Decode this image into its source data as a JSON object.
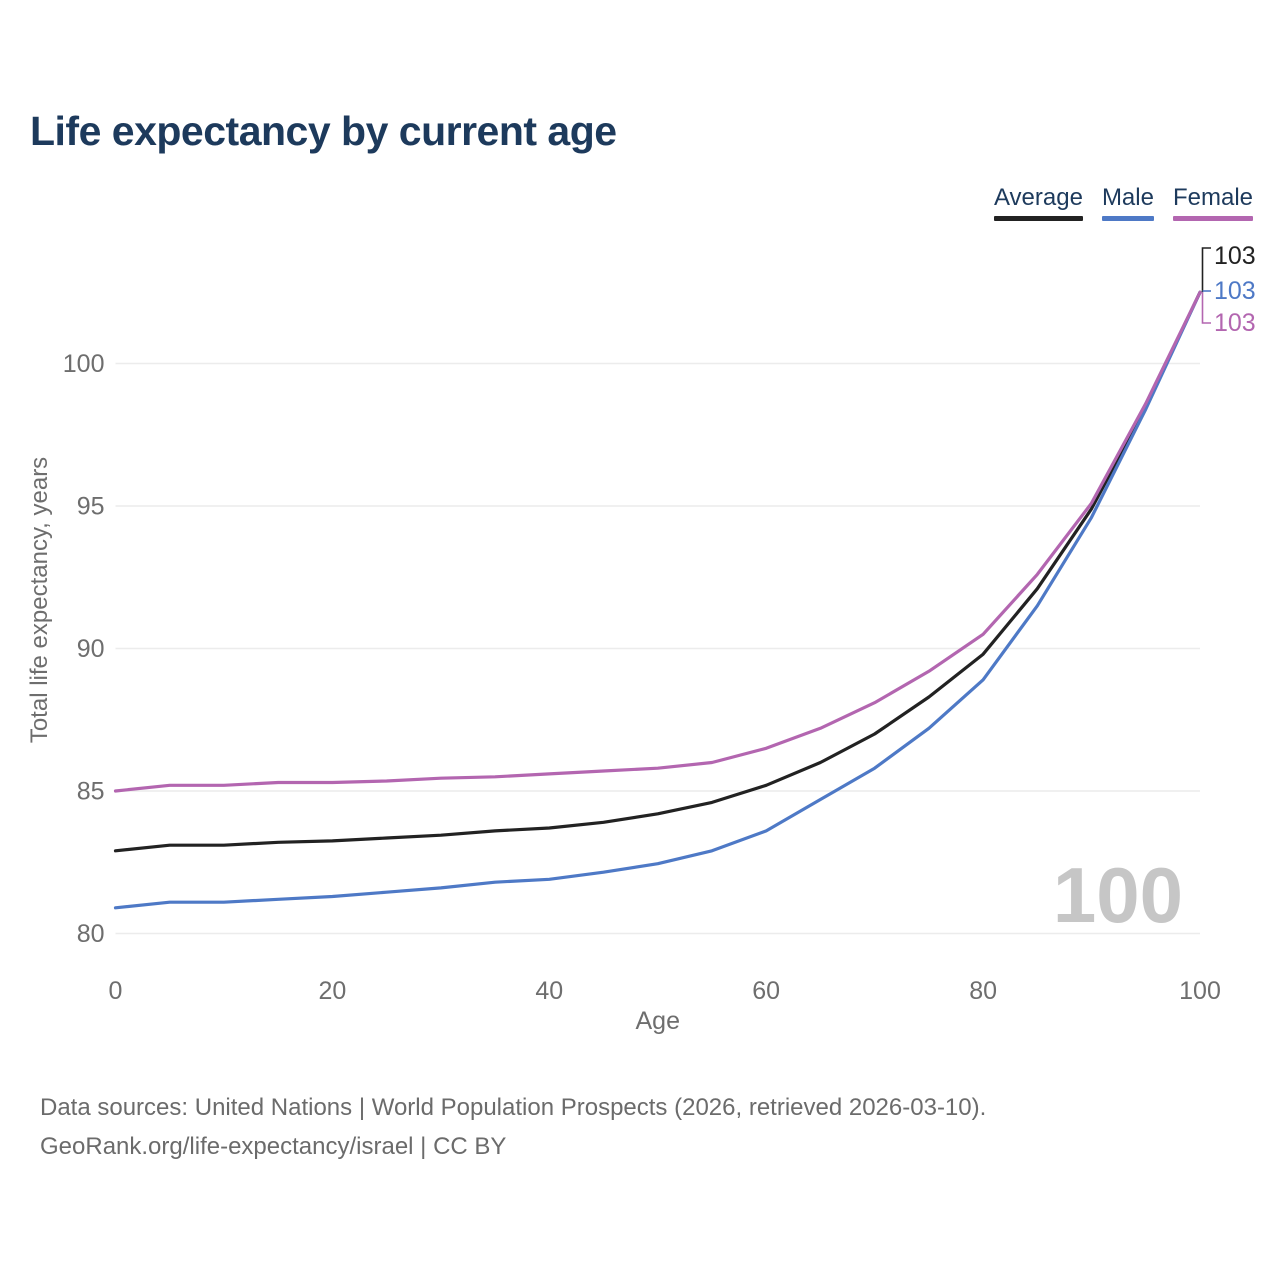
{
  "title": "Life expectancy by current age",
  "legend": {
    "items": [
      {
        "label": "Average",
        "color": "#222222"
      },
      {
        "label": "Male",
        "color": "#4e79c6"
      },
      {
        "label": "Female",
        "color": "#b366b0"
      }
    ]
  },
  "chart_data": {
    "type": "line",
    "title": "Life expectancy by current age",
    "xlabel": "Age",
    "ylabel": "Total life expectancy, years",
    "xlim": [
      0,
      100
    ],
    "ylim": [
      79.5,
      103.5
    ],
    "xticks": [
      0,
      20,
      40,
      60,
      80,
      100
    ],
    "yticks": [
      80,
      85,
      90,
      95,
      100
    ],
    "grid": "horizontal",
    "legend_position": "top-right",
    "watermark": "100",
    "x": [
      0,
      5,
      10,
      15,
      20,
      25,
      30,
      35,
      40,
      45,
      50,
      55,
      60,
      65,
      70,
      75,
      80,
      85,
      90,
      95,
      100
    ],
    "series": [
      {
        "name": "Average",
        "color": "#222222",
        "values": [
          82.9,
          83.1,
          83.1,
          83.2,
          83.25,
          83.35,
          83.45,
          83.6,
          83.7,
          83.9,
          84.2,
          84.6,
          85.2,
          86.0,
          87.0,
          88.3,
          89.8,
          92.1,
          94.9,
          98.5,
          102.5
        ],
        "end_label": "103"
      },
      {
        "name": "Male",
        "color": "#4e79c6",
        "values": [
          80.9,
          81.1,
          81.1,
          81.2,
          81.3,
          81.45,
          81.6,
          81.8,
          81.9,
          82.15,
          82.45,
          82.9,
          83.6,
          84.7,
          85.8,
          87.2,
          88.9,
          91.5,
          94.6,
          98.4,
          102.5
        ],
        "end_label": "103"
      },
      {
        "name": "Female",
        "color": "#b366b0",
        "values": [
          85.0,
          85.2,
          85.2,
          85.3,
          85.3,
          85.35,
          85.45,
          85.5,
          85.6,
          85.7,
          85.8,
          86.0,
          86.5,
          87.2,
          88.1,
          89.2,
          90.5,
          92.6,
          95.1,
          98.6,
          102.5
        ],
        "end_label": "103"
      }
    ]
  },
  "colors": {
    "title_text": "#1d3a5c",
    "axis_text": "#6e6e6e",
    "gridline": "#ececec",
    "watermark": "#c6c6c6",
    "footer_text": "#6b6b6b"
  },
  "footer": {
    "line1": "Data sources: United Nations | World Population Prospects (2026, retrieved 2026-03-10).",
    "line2": "GeoRank.org/life-expectancy/israel | CC BY"
  }
}
